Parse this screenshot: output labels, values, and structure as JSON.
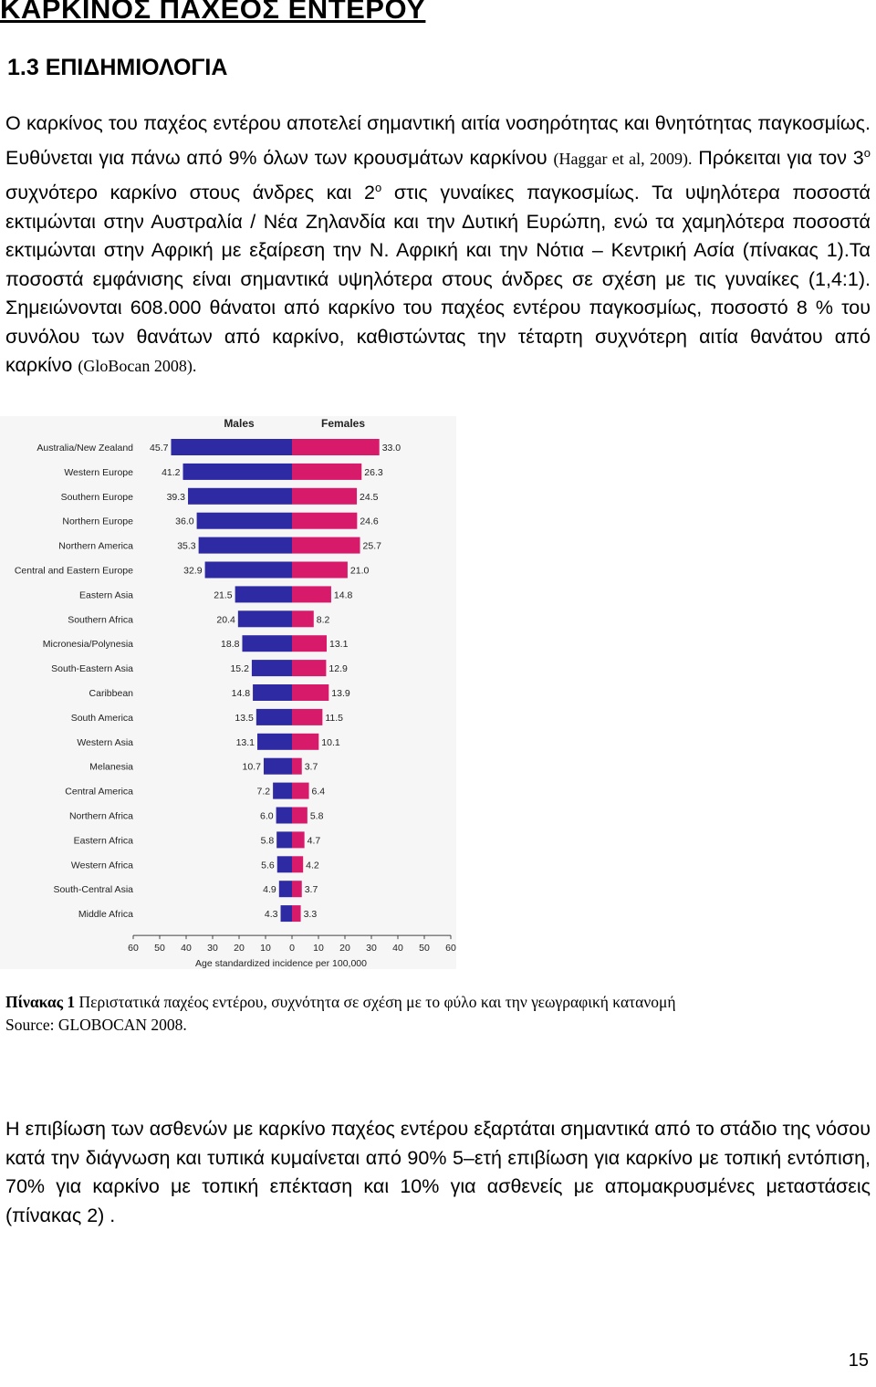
{
  "document": {
    "heading": "ΚΑΡΚΙΝΟΣ ΠΑΧΕΟΣ ΕΝΤΕΡΟΥ",
    "subheading": "1.3 ΕΠΙΔΗΜΙΟΛΟΓΙΑ",
    "paragraph1": {
      "s1": "Ο καρκίνος του παχέος εντέρου αποτελεί σημαντική αιτία νοσηρότητας και θνητότητας παγκοσμίως. Ευθύνεται για πάνω από 9% όλων των κρουσμάτων καρκίνου ",
      "cite1": "(Haggar et al, 2009).",
      "s2": " Πρόκειται για τον 3",
      "sup1": "ο",
      "s3": " συχνότερο καρκίνο στους άνδρες και 2",
      "sup2": "ο",
      "s4": " στις γυναίκες παγκοσμίως. Τα υψηλότερα ποσοστά εκτιμώνται στην Αυστραλία / Νέα Ζηλανδία και την Δυτική Ευρώπη, ενώ τα χαμηλότερα ποσοστά εκτιμώνται στην Αφρική με εξαίρεση την Ν. Αφρική και την Νότια – Κεντρική Ασία (πίνακας 1).Τα ποσοστά εμφάνισης είναι σημαντικά υψηλότερα στους άνδρες σε σχέση με τις γυναίκες (1,4:1). Σημειώνονται 608.000 θάνατοι από καρκίνο του παχέος εντέρου παγκοσμίως, ποσοστό 8 % του συνόλου των θανάτων από καρκίνο, καθιστώντας την τέταρτη συχνότερη αιτία θανάτου από καρκίνο ",
      "cite2": "(GloBocan 2008)."
    },
    "caption": {
      "label": "Πίνακας 1",
      "text": " Περιστατικά παχέος εντέρου, συχνότητα  σε σχέση με το φύλο και την γεωγραφική κατανομή",
      "source": "Source: GLOBOCAN 2008."
    },
    "paragraph2": " Η επιβίωση των ασθενών με καρκίνο παχέος εντέρου εξαρτάται σημαντικά από το στάδιο της νόσου κατά την διάγνωση και τυπικά κυμαίνεται από 90%  5–ετή επιβίωση για καρκίνο με τοπική εντόπιση, 70% για καρκίνο με τοπική επέκταση και 10% για ασθενείς με απομακρυσμένες μεταστάσεις (πίνακας 2) .",
    "page_number": "15"
  },
  "chart_data": {
    "type": "bar",
    "orientation": "horizontal-butterfly",
    "xlabel": "Age standardized incidence per 100,000",
    "xlim": [
      -60,
      60
    ],
    "xticks": [
      "60",
      "50",
      "40",
      "30",
      "20",
      "10",
      "0",
      "10",
      "20",
      "30",
      "40",
      "50",
      "60"
    ],
    "categories": [
      "Australia/New Zealand",
      "Western Europe",
      "Southern Europe",
      "Northern Europe",
      "Northern America",
      "Central and Eastern Europe",
      "Eastern Asia",
      "Southern Africa",
      "Micronesia/Polynesia",
      "South-Eastern Asia",
      "Caribbean",
      "South America",
      "Western Asia",
      "Melanesia",
      "Central America",
      "Northern Africa",
      "Eastern Africa",
      "Western Africa",
      "South-Central Asia",
      "Middle Africa"
    ],
    "series": [
      {
        "name": "Males",
        "color": "#2d2aa3",
        "values": [
          45.7,
          41.2,
          39.3,
          36.0,
          35.3,
          32.9,
          21.5,
          20.4,
          18.8,
          15.2,
          14.8,
          13.5,
          13.1,
          10.7,
          7.2,
          6.0,
          5.8,
          5.6,
          4.9,
          4.3
        ]
      },
      {
        "name": "Females",
        "color": "#d81a6a",
        "values": [
          33.0,
          26.3,
          24.5,
          24.6,
          25.7,
          21.0,
          14.8,
          8.2,
          13.1,
          12.9,
          13.9,
          11.5,
          10.1,
          3.7,
          6.4,
          5.8,
          4.7,
          4.2,
          3.7,
          3.3
        ]
      }
    ],
    "grid": false,
    "legend": "top"
  }
}
